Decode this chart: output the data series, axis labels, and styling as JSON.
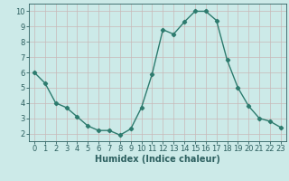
{
  "x": [
    0,
    1,
    2,
    3,
    4,
    5,
    6,
    7,
    8,
    9,
    10,
    11,
    12,
    13,
    14,
    15,
    16,
    17,
    18,
    19,
    20,
    21,
    22,
    23
  ],
  "y": [
    6.0,
    5.3,
    4.0,
    3.7,
    3.1,
    2.5,
    2.2,
    2.2,
    1.9,
    2.3,
    3.7,
    5.9,
    8.8,
    8.5,
    9.3,
    10.0,
    10.0,
    9.4,
    6.8,
    5.0,
    3.8,
    3.0,
    2.8,
    2.4
  ],
  "line_color": "#2d7b6e",
  "marker": "D",
  "marker_size": 2.2,
  "bg_color": "#cceae8",
  "grid_color": "#c8b8b8",
  "xlabel": "Humidex (Indice chaleur)",
  "xlim": [
    -0.5,
    23.5
  ],
  "ylim": [
    1.5,
    10.5
  ],
  "yticks": [
    2,
    3,
    4,
    5,
    6,
    7,
    8,
    9,
    10
  ],
  "xticks": [
    0,
    1,
    2,
    3,
    4,
    5,
    6,
    7,
    8,
    9,
    10,
    11,
    12,
    13,
    14,
    15,
    16,
    17,
    18,
    19,
    20,
    21,
    22,
    23
  ],
  "xlabel_fontsize": 7,
  "tick_fontsize": 6,
  "axis_color": "#2d6060",
  "linewidth": 1.0
}
